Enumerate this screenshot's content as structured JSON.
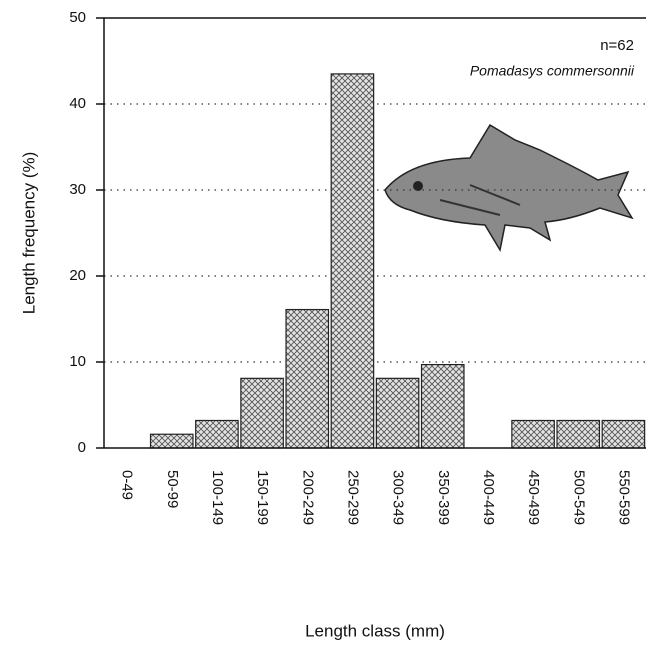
{
  "chart_data": {
    "type": "bar",
    "x_label": "Length class (mm)",
    "y_label": "Length frequency (%)",
    "annotations": [
      "n=62",
      "Pomadasys commersonnii"
    ],
    "categories": [
      "0-49",
      "50-99",
      "100-149",
      "150-199",
      "200-249",
      "250-299",
      "300-349",
      "350-399",
      "400-449",
      "450-499",
      "500-549",
      "550-599"
    ],
    "values": [
      0,
      1.6,
      3.2,
      8.1,
      16.1,
      43.5,
      8.1,
      9.7,
      0,
      3.2,
      3.2,
      3.2
    ],
    "color": "#555555",
    "ylim": [
      0,
      50
    ],
    "yticks": [
      0,
      10,
      20,
      30,
      40,
      50
    ],
    "grid": true
  }
}
